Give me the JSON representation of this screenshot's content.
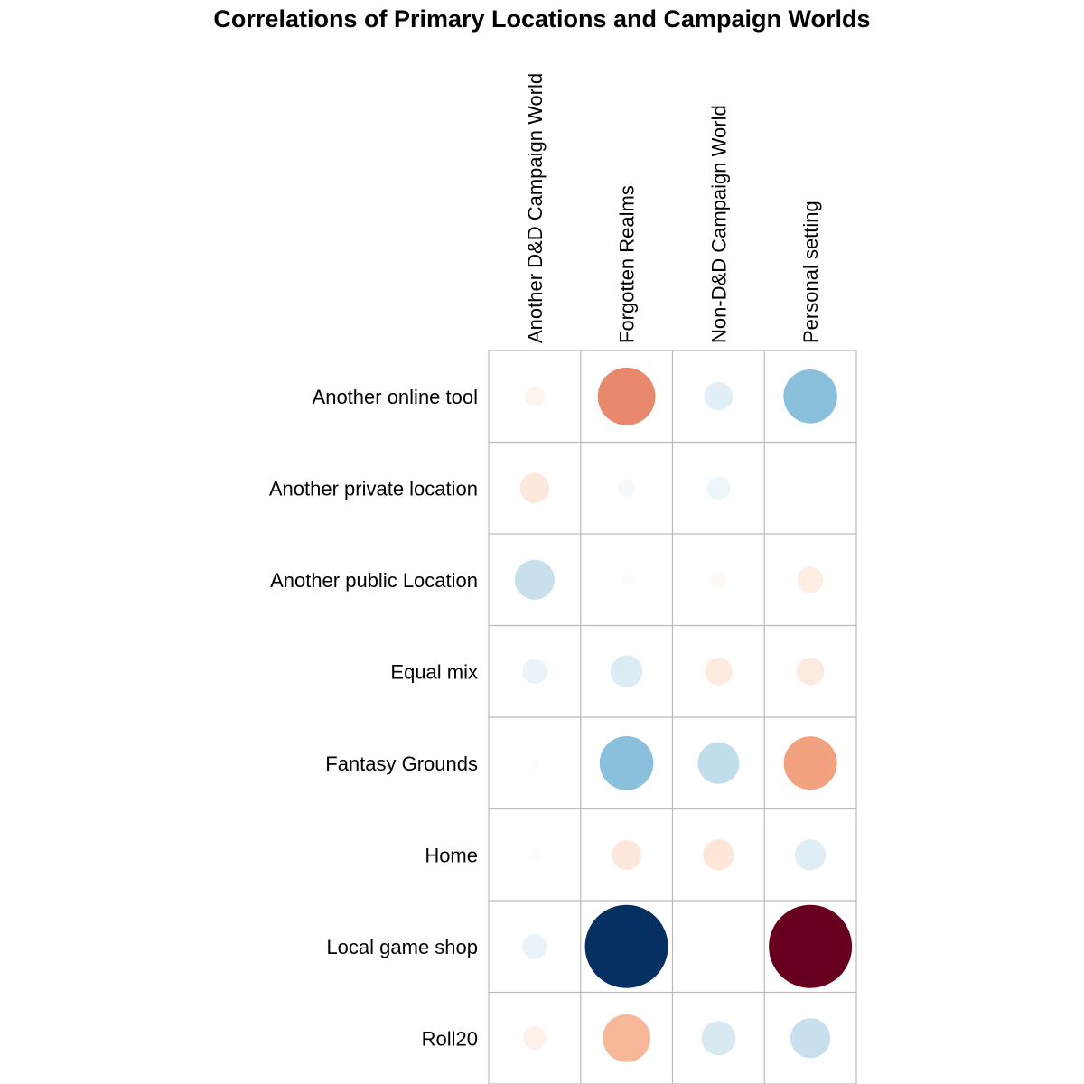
{
  "chart_data": {
    "type": "heatmap",
    "subtype": "correlation-circles",
    "title": "Correlations of Primary Locations and Campaign Worlds",
    "columns": [
      "Another D&D Campaign World",
      "Forgotten Realms",
      "Non-D&D Campaign World",
      "Personal setting"
    ],
    "rows": [
      "Another online tool",
      "Another private location",
      "Another public Location",
      "Equal mix",
      "Fantasy Grounds",
      "Home",
      "Local game shop",
      "Roll20"
    ],
    "values": [
      [
        0.06,
        0.48,
        -0.12,
        -0.42
      ],
      [
        0.13,
        -0.05,
        -0.08,
        0.0
      ],
      [
        -0.23,
        0.02,
        0.04,
        0.1
      ],
      [
        -0.09,
        -0.15,
        0.11,
        0.11
      ],
      [
        0.02,
        -0.42,
        -0.25,
        0.41
      ],
      [
        0.02,
        0.13,
        0.14,
        -0.14
      ],
      [
        -0.09,
        -1.0,
        0.0,
        1.0
      ],
      [
        0.08,
        0.33,
        -0.17,
        -0.23
      ]
    ],
    "value_range": [
      -1,
      1
    ],
    "colorscale": "diverging red (positive) to white to blue (negative)",
    "colorscale_stops": [
      "#67001F",
      "#B2182B",
      "#D6604D",
      "#F4A582",
      "#FDDBC7",
      "#FFFFFF",
      "#D1E5F0",
      "#92C5DE",
      "#4393C3",
      "#2166AC",
      "#053061"
    ],
    "legend": "none",
    "grid": true,
    "grid_color": "#BBBBBB"
  }
}
